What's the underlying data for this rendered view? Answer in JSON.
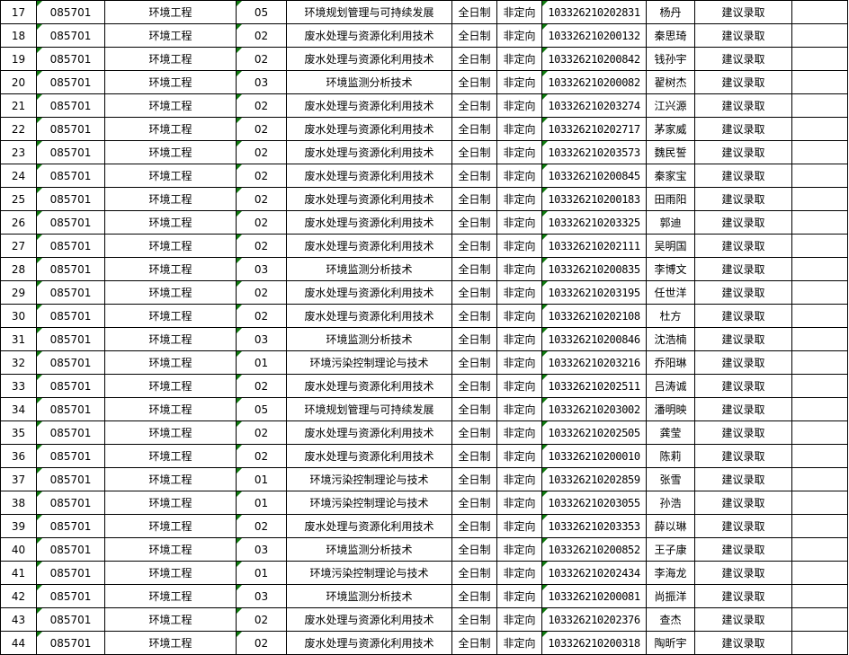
{
  "rows": [
    {
      "no": "17",
      "code": "085701",
      "major": "环境工程",
      "dir_code": "05",
      "direction": "环境规划管理与可持续发展",
      "mode": "全日制",
      "type": "非定向",
      "id": "103326210202831",
      "name": "杨丹",
      "result": "建议录取",
      "note": ""
    },
    {
      "no": "18",
      "code": "085701",
      "major": "环境工程",
      "dir_code": "02",
      "direction": "废水处理与资源化利用技术",
      "mode": "全日制",
      "type": "非定向",
      "id": "103326210200132",
      "name": "秦思琦",
      "result": "建议录取",
      "note": ""
    },
    {
      "no": "19",
      "code": "085701",
      "major": "环境工程",
      "dir_code": "02",
      "direction": "废水处理与资源化利用技术",
      "mode": "全日制",
      "type": "非定向",
      "id": "103326210200842",
      "name": "钱孙宇",
      "result": "建议录取",
      "note": ""
    },
    {
      "no": "20",
      "code": "085701",
      "major": "环境工程",
      "dir_code": "03",
      "direction": "环境监测分析技术",
      "mode": "全日制",
      "type": "非定向",
      "id": "103326210200082",
      "name": "翟树杰",
      "result": "建议录取",
      "note": ""
    },
    {
      "no": "21",
      "code": "085701",
      "major": "环境工程",
      "dir_code": "02",
      "direction": "废水处理与资源化利用技术",
      "mode": "全日制",
      "type": "非定向",
      "id": "103326210203274",
      "name": "江兴源",
      "result": "建议录取",
      "note": ""
    },
    {
      "no": "22",
      "code": "085701",
      "major": "环境工程",
      "dir_code": "02",
      "direction": "废水处理与资源化利用技术",
      "mode": "全日制",
      "type": "非定向",
      "id": "103326210202717",
      "name": "茅家威",
      "result": "建议录取",
      "note": ""
    },
    {
      "no": "23",
      "code": "085701",
      "major": "环境工程",
      "dir_code": "02",
      "direction": "废水处理与资源化利用技术",
      "mode": "全日制",
      "type": "非定向",
      "id": "103326210203573",
      "name": "魏民誓",
      "result": "建议录取",
      "note": ""
    },
    {
      "no": "24",
      "code": "085701",
      "major": "环境工程",
      "dir_code": "02",
      "direction": "废水处理与资源化利用技术",
      "mode": "全日制",
      "type": "非定向",
      "id": "103326210200845",
      "name": "秦家宝",
      "result": "建议录取",
      "note": ""
    },
    {
      "no": "25",
      "code": "085701",
      "major": "环境工程",
      "dir_code": "02",
      "direction": "废水处理与资源化利用技术",
      "mode": "全日制",
      "type": "非定向",
      "id": "103326210200183",
      "name": "田雨阳",
      "result": "建议录取",
      "note": ""
    },
    {
      "no": "26",
      "code": "085701",
      "major": "环境工程",
      "dir_code": "02",
      "direction": "废水处理与资源化利用技术",
      "mode": "全日制",
      "type": "非定向",
      "id": "103326210203325",
      "name": "郭迪",
      "result": "建议录取",
      "note": ""
    },
    {
      "no": "27",
      "code": "085701",
      "major": "环境工程",
      "dir_code": "02",
      "direction": "废水处理与资源化利用技术",
      "mode": "全日制",
      "type": "非定向",
      "id": "103326210202111",
      "name": "吴明国",
      "result": "建议录取",
      "note": ""
    },
    {
      "no": "28",
      "code": "085701",
      "major": "环境工程",
      "dir_code": "03",
      "direction": "环境监测分析技术",
      "mode": "全日制",
      "type": "非定向",
      "id": "103326210200835",
      "name": "李博文",
      "result": "建议录取",
      "note": ""
    },
    {
      "no": "29",
      "code": "085701",
      "major": "环境工程",
      "dir_code": "02",
      "direction": "废水处理与资源化利用技术",
      "mode": "全日制",
      "type": "非定向",
      "id": "103326210203195",
      "name": "任世洋",
      "result": "建议录取",
      "note": ""
    },
    {
      "no": "30",
      "code": "085701",
      "major": "环境工程",
      "dir_code": "02",
      "direction": "废水处理与资源化利用技术",
      "mode": "全日制",
      "type": "非定向",
      "id": "103326210202108",
      "name": "杜方",
      "result": "建议录取",
      "note": ""
    },
    {
      "no": "31",
      "code": "085701",
      "major": "环境工程",
      "dir_code": "03",
      "direction": "环境监测分析技术",
      "mode": "全日制",
      "type": "非定向",
      "id": "103326210200846",
      "name": "沈浩楠",
      "result": "建议录取",
      "note": ""
    },
    {
      "no": "32",
      "code": "085701",
      "major": "环境工程",
      "dir_code": "01",
      "direction": "环境污染控制理论与技术",
      "mode": "全日制",
      "type": "非定向",
      "id": "103326210203216",
      "name": "乔阳琳",
      "result": "建议录取",
      "note": ""
    },
    {
      "no": "33",
      "code": "085701",
      "major": "环境工程",
      "dir_code": "02",
      "direction": "废水处理与资源化利用技术",
      "mode": "全日制",
      "type": "非定向",
      "id": "103326210202511",
      "name": "吕涛诚",
      "result": "建议录取",
      "note": ""
    },
    {
      "no": "34",
      "code": "085701",
      "major": "环境工程",
      "dir_code": "05",
      "direction": "环境规划管理与可持续发展",
      "mode": "全日制",
      "type": "非定向",
      "id": "103326210203002",
      "name": "潘明映",
      "result": "建议录取",
      "note": ""
    },
    {
      "no": "35",
      "code": "085701",
      "major": "环境工程",
      "dir_code": "02",
      "direction": "废水处理与资源化利用技术",
      "mode": "全日制",
      "type": "非定向",
      "id": "103326210202505",
      "name": "龚莹",
      "result": "建议录取",
      "note": ""
    },
    {
      "no": "36",
      "code": "085701",
      "major": "环境工程",
      "dir_code": "02",
      "direction": "废水处理与资源化利用技术",
      "mode": "全日制",
      "type": "非定向",
      "id": "103326210200010",
      "name": "陈莉",
      "result": "建议录取",
      "note": ""
    },
    {
      "no": "37",
      "code": "085701",
      "major": "环境工程",
      "dir_code": "01",
      "direction": "环境污染控制理论与技术",
      "mode": "全日制",
      "type": "非定向",
      "id": "103326210202859",
      "name": "张雪",
      "result": "建议录取",
      "note": ""
    },
    {
      "no": "38",
      "code": "085701",
      "major": "环境工程",
      "dir_code": "01",
      "direction": "环境污染控制理论与技术",
      "mode": "全日制",
      "type": "非定向",
      "id": "103326210203055",
      "name": "孙浩",
      "result": "建议录取",
      "note": ""
    },
    {
      "no": "39",
      "code": "085701",
      "major": "环境工程",
      "dir_code": "02",
      "direction": "废水处理与资源化利用技术",
      "mode": "全日制",
      "type": "非定向",
      "id": "103326210203353",
      "name": "薛以琳",
      "result": "建议录取",
      "note": ""
    },
    {
      "no": "40",
      "code": "085701",
      "major": "环境工程",
      "dir_code": "03",
      "direction": "环境监测分析技术",
      "mode": "全日制",
      "type": "非定向",
      "id": "103326210200852",
      "name": "王子康",
      "result": "建议录取",
      "note": ""
    },
    {
      "no": "41",
      "code": "085701",
      "major": "环境工程",
      "dir_code": "01",
      "direction": "环境污染控制理论与技术",
      "mode": "全日制",
      "type": "非定向",
      "id": "103326210202434",
      "name": "李海龙",
      "result": "建议录取",
      "note": ""
    },
    {
      "no": "42",
      "code": "085701",
      "major": "环境工程",
      "dir_code": "03",
      "direction": "环境监测分析技术",
      "mode": "全日制",
      "type": "非定向",
      "id": "103326210200081",
      "name": "尚振洋",
      "result": "建议录取",
      "note": ""
    },
    {
      "no": "43",
      "code": "085701",
      "major": "环境工程",
      "dir_code": "02",
      "direction": "废水处理与资源化利用技术",
      "mode": "全日制",
      "type": "非定向",
      "id": "103326210202376",
      "name": "查杰",
      "result": "建议录取",
      "note": ""
    },
    {
      "no": "44",
      "code": "085701",
      "major": "环境工程",
      "dir_code": "02",
      "direction": "废水处理与资源化利用技术",
      "mode": "全日制",
      "type": "非定向",
      "id": "103326210200318",
      "name": "陶昕宇",
      "result": "建议录取",
      "note": ""
    }
  ],
  "colors": {
    "grid": "#000000",
    "text_marker": "#107c10"
  }
}
